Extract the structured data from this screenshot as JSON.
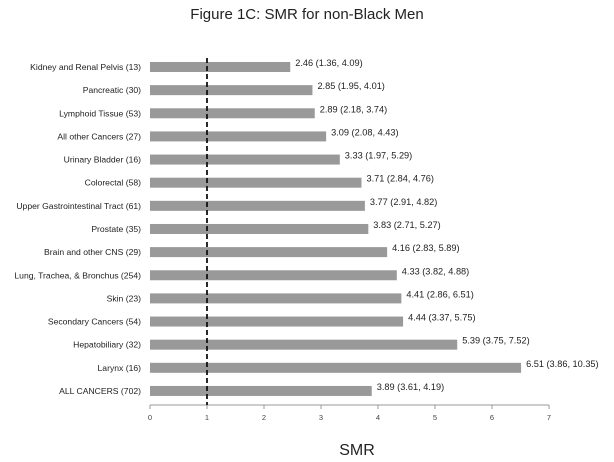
{
  "chart_data": {
    "type": "bar",
    "orientation": "horizontal",
    "title": "Figure 1C: SMR for non-Black Men",
    "xlabel": "SMR",
    "ylabel": "",
    "xlim": [
      0,
      7
    ],
    "xticks": [
      "0",
      "1",
      "2",
      "3",
      "4",
      "5",
      "6",
      "7"
    ],
    "reference_line": 1,
    "grid": false,
    "categories": [
      "Kidney and Renal Pelvis (13)",
      "Pancreatic (30)",
      "Lymphoid Tissue (53)",
      "All other Cancers (27)",
      "Urinary Bladder (16)",
      "Colorectal (58)",
      "Upper Gastrointestinal Tract (61)",
      "Prostate (35)",
      "Brain and other CNS (29)",
      "Lung, Trachea, & Bronchus (254)",
      "Skin (23)",
      "Secondary Cancers (54)",
      "Hepatobiliary (32)",
      "Larynx (16)",
      "ALL CANCERS (702)"
    ],
    "values": [
      2.46,
      2.85,
      2.89,
      3.09,
      3.33,
      3.71,
      3.77,
      3.83,
      4.16,
      4.33,
      4.41,
      4.44,
      5.39,
      6.51,
      3.89
    ],
    "data_labels": [
      "2.46 (1.36, 4.09)",
      "2.85 (1.95, 4.01)",
      "2.89 (2.18, 3.74)",
      "3.09 (2.08, 4.43)",
      "3.33 (1.97, 5.29)",
      "3.71 (2.84, 4.76)",
      "3.77 (2.91, 4.82)",
      "3.83 (2.71, 5.27)",
      "4.16 (2.83, 5.89)",
      "4.33 (3.82, 4.88)",
      "4.41 (2.86, 6.51)",
      "4.44 (3.37, 5.75)",
      "5.39 (3.75, 7.52)",
      "6.51 (3.86, 10.35)",
      "3.89 (3.61, 4.19)"
    ],
    "colors": {
      "bar": "#999999",
      "reference_line": "#111111",
      "axis": "#999999",
      "text": "#222222"
    }
  }
}
